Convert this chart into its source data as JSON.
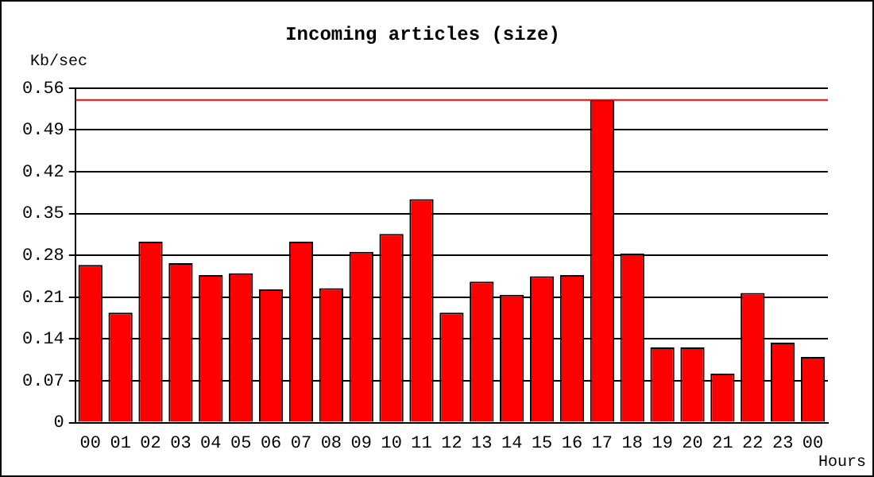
{
  "chart_data": {
    "type": "bar",
    "title": "Incoming articles (size)",
    "ylabel": "Kb/sec",
    "xlabel": "Hours",
    "categories": [
      "00",
      "01",
      "02",
      "03",
      "04",
      "05",
      "06",
      "07",
      "08",
      "09",
      "10",
      "11",
      "12",
      "13",
      "14",
      "15",
      "16",
      "17",
      "18",
      "19",
      "20",
      "21",
      "22",
      "23",
      "00"
    ],
    "values": [
      0.264,
      0.184,
      0.303,
      0.267,
      0.247,
      0.25,
      0.223,
      0.303,
      0.225,
      0.286,
      0.316,
      0.374,
      0.184,
      0.236,
      0.214,
      0.245,
      0.247,
      0.54,
      0.283,
      0.126,
      0.126,
      0.082,
      0.217,
      0.134,
      0.11
    ],
    "color": "#ff0000",
    "ylim": [
      0,
      0.56
    ],
    "yticks": [
      "0",
      0.07,
      0.14,
      0.21,
      0.28,
      0.35,
      0.42,
      0.49,
      0.56
    ],
    "grid": "y",
    "legend": false,
    "ref_lines": [
      {
        "axis": "y",
        "value": 0.54,
        "color": "#ff0000"
      }
    ]
  }
}
